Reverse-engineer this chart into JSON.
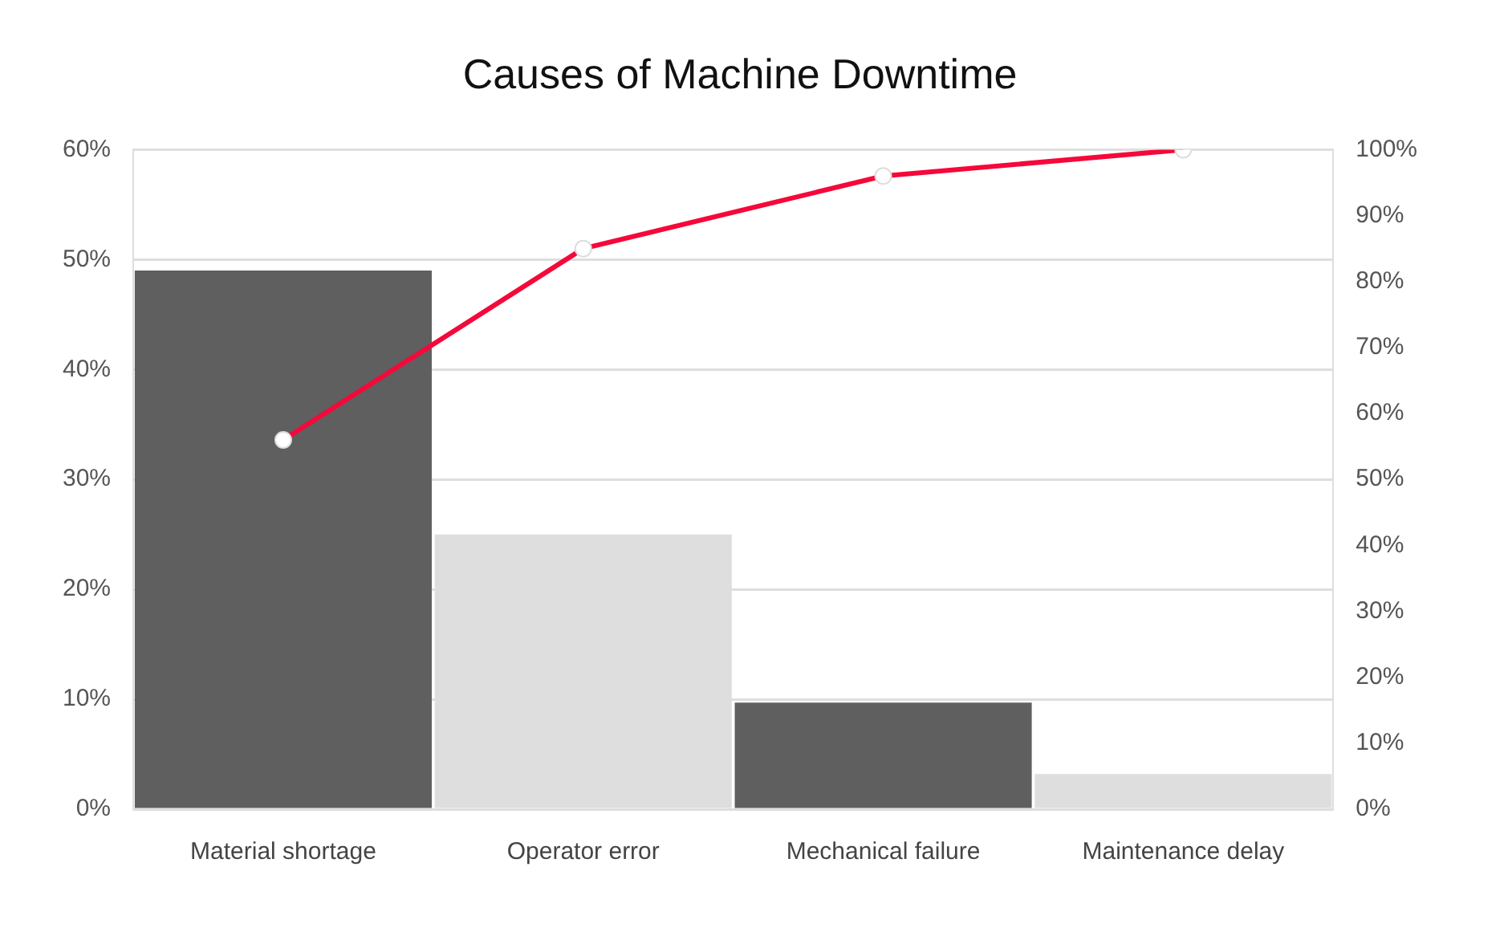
{
  "chart_data": {
    "type": "bar",
    "title": "Causes of Machine Downtime",
    "categories": [
      "Material shortage",
      "Operator error",
      "Mechanical failure",
      "Maintenance delay"
    ],
    "series": [
      {
        "colors": [
          "#5f5f5f",
          "#dedede",
          "#5f5f5f",
          "#dedede"
        ],
        "values": [
          49,
          25,
          9.7,
          3.2
        ]
      },
      {
        "type": "line",
        "axis": "y2",
        "color": "#f5083a",
        "values": [
          56,
          85,
          96,
          100
        ],
        "marker": "circle"
      }
    ],
    "ylim": [
      0,
      60
    ],
    "yticks": [
      {
        "value": 0,
        "label": "0%"
      },
      {
        "value": 10,
        "label": "10%"
      },
      {
        "value": 20,
        "label": "20%"
      },
      {
        "value": 30,
        "label": "30%"
      },
      {
        "value": 40,
        "label": "40%"
      },
      {
        "value": 50,
        "label": "50%"
      },
      {
        "value": 60,
        "label": "60%"
      }
    ],
    "y2lim": [
      0,
      100
    ],
    "y2ticks": [
      {
        "value": 0,
        "label": "0%"
      },
      {
        "value": 10,
        "label": "10%"
      },
      {
        "value": 20,
        "label": "20%"
      },
      {
        "value": 30,
        "label": "30%"
      },
      {
        "value": 40,
        "label": "40%"
      },
      {
        "value": 50,
        "label": "50%"
      },
      {
        "value": 60,
        "label": "60%"
      },
      {
        "value": 70,
        "label": "70%"
      },
      {
        "value": 80,
        "label": "80%"
      },
      {
        "value": 90,
        "label": "90%"
      },
      {
        "value": 100,
        "label": "100%"
      }
    ],
    "grid": "y",
    "legend": false
  }
}
